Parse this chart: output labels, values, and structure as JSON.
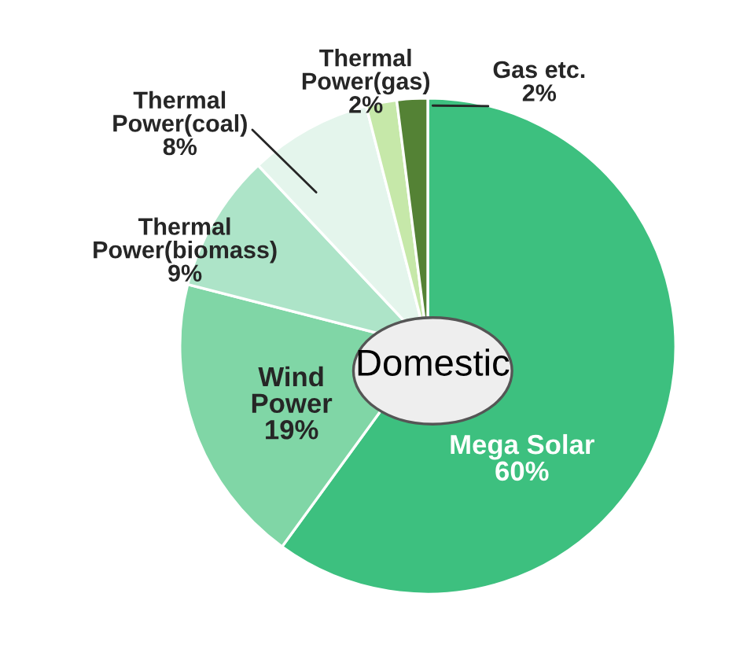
{
  "chart_data": {
    "type": "pie",
    "title": "Domestic",
    "categories": [
      "Mega Solar",
      "Wind\nPower",
      "Thermal\nPower(biomass)",
      "Thermal\nPower(coal)",
      "Thermal\nPower(gas)",
      "Gas etc."
    ],
    "values": [
      60,
      19,
      9,
      8,
      2,
      2
    ],
    "value_labels": [
      "60%",
      "19%",
      "9%",
      "8%",
      "2%",
      "2%"
    ],
    "colors": [
      "#3dc07f",
      "#80d6a6",
      "#ade4c8",
      "#e4f5ec",
      "#c6e8a9",
      "#548235"
    ],
    "legend": false
  }
}
